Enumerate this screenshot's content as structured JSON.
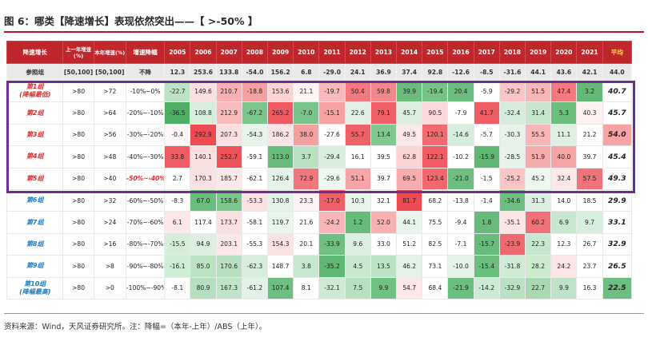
{
  "figure_title": "图 6：哪类【降速增长】表现依然突出——【 >-50% 】",
  "header": {
    "group": "降速增长",
    "prev_year": "上一年增速(%)",
    "this_year": "本年增速(%)",
    "decline": "增速降幅",
    "years": [
      "2005",
      "2006",
      "2007",
      "2008",
      "2009",
      "2010",
      "2011",
      "2012",
      "2013",
      "2014",
      "2015",
      "2016",
      "2017",
      "2018",
      "2019",
      "2020",
      "2021"
    ],
    "avg": "平均"
  },
  "reference": {
    "label": "参照组",
    "prev": "[50,100]",
    "this": "[50,100]",
    "decline": "不降",
    "values": [
      "12.3",
      "253.6",
      "133.8",
      "-54.0",
      "156.2",
      "6.8",
      "-29.0",
      "24.1",
      "36.9",
      "37.4",
      "92.8",
      "-12.6",
      "-8.5",
      "-31.6",
      "44.1",
      "43.6",
      "42.1"
    ],
    "avg": "44.0"
  },
  "groups": [
    {
      "label_line1": "第1组",
      "label_line2": "(降幅最低)",
      "prev": ">80",
      "this": ">72",
      "decline": "-10%~0%",
      "neg": false,
      "values": [
        "-22.7",
        "149.6",
        "210.7",
        "-18.8",
        "153.6",
        "21.1",
        "-19.7",
        "50.4",
        "59.8",
        "39.9",
        "-19.4",
        "20.4",
        "-5.9",
        "-29.2",
        "51.5",
        "47.4",
        "3.2"
      ],
      "colors": [
        "#bde3c5",
        "#fbe0e1",
        "#f7b0b2",
        "#f4a0a3",
        "#fcd2d3",
        "#fff4f4",
        "#f9b8ba",
        "#f2797e",
        "#f2888c",
        "#68bd7b",
        "#75c385",
        "#6cbd80",
        "#ffffff",
        "#fbc5c6",
        "#f9b6b8",
        "#f4797f",
        "#63ba77"
      ],
      "avg": "40.7"
    },
    {
      "label_line1": "第2组",
      "label_line2": "",
      "prev": ">80",
      "this": ">64",
      "decline": "-20%~-10%",
      "neg": false,
      "values": [
        "-36.5",
        "108.8",
        "212.9",
        "-67.2",
        "265.2",
        "-7.0",
        "-15.1",
        "22.6",
        "79.1",
        "45.7",
        "90.5",
        "-7.9",
        "41.7",
        "-32.4",
        "31.4",
        "5.3",
        "40.3"
      ],
      "colors": [
        "#4fae66",
        "#d7eedc",
        "#f9bcbd",
        "#7ac68c",
        "#ee5a60",
        "#79c48a",
        "#f6a1a4",
        "#e2f1e5",
        "#ef6167",
        "#dcefe0",
        "#fcdadb",
        "#ffffff",
        "#ef5c63",
        "#d7ecdc",
        "#c7e6cd",
        "#6abf7d",
        "#fff1f1"
      ],
      "avg": "45.7"
    },
    {
      "label_line1": "第3组",
      "label_line2": "",
      "prev": ">80",
      "this": ">56",
      "decline": "-30%~-20%",
      "neg": false,
      "values": [
        "-0.4",
        "292.9",
        "207.3",
        "-54.3",
        "186.2",
        "38.0",
        "-27.6",
        "55.7",
        "13.4",
        "49.5",
        "120.1",
        "-14.6",
        "-5.7",
        "-30.3",
        "55.5",
        "11.1",
        "21.2"
      ],
      "colors": [
        "#fff7f7",
        "#ed4a52",
        "#fcdfe0",
        "#e7f4ea",
        "#fbe4e5",
        "#f39fa2",
        "#ffffff",
        "#ef6168",
        "#7fc88f",
        "#fbe8e9",
        "#f06a70",
        "#d7eedc",
        "#ffffff",
        "#e7f3ea",
        "#f9b5b8",
        "#dff0e3",
        "#ffffff"
      ],
      "avg": "54.0"
    },
    {
      "label_line1": "第4组",
      "label_line2": "",
      "prev": ">80",
      "this": ">48",
      "decline": "-40%~-30%",
      "neg": false,
      "values": [
        "33.8",
        "140.1",
        "252.7",
        "-59.1",
        "113.0",
        "3.7",
        "-29.4",
        "16.1",
        "39.5",
        "62.8",
        "122.1",
        "-10.2",
        "-15.9",
        "-28.5",
        "51.9",
        "40.0",
        "39.7"
      ],
      "colors": [
        "#ef5c63",
        "#fcdfe0",
        "#ee5259",
        "#ffffff",
        "#67bc7b",
        "#b8e0c1",
        "#d9eedd",
        "#ffffff",
        "#ffffff",
        "#fbd3d5",
        "#ef5c63",
        "#ffffff",
        "#5fb774",
        "#e5f3e8",
        "#f8abad",
        "#f7a4a7",
        "#ffffff"
      ],
      "avg": "45.4"
    },
    {
      "label_line1": "第5组",
      "label_line2": "",
      "prev": ">80",
      "this": ">40",
      "decline": "-50%~-40%",
      "neg": true,
      "values": [
        "2.7",
        "170.3",
        "185.7",
        "-62.1",
        "126.4",
        "72.9",
        "-29.6",
        "51.1",
        "39.7",
        "69.5",
        "123.4",
        "-21.0",
        "-1.5",
        "-25.2",
        "45.2",
        "32.4",
        "57.5"
      ],
      "colors": [
        "#ffffff",
        "#fbe1e2",
        "#fde7e8",
        "#ffffff",
        "#e5f3e8",
        "#f2777c",
        "#eef8f0",
        "#f7a5a8",
        "#ffffff",
        "#f8acae",
        "#f06970",
        "#6dbf81",
        "#ffffff",
        "#fbc5c7",
        "#eef8f1",
        "#fde8e8",
        "#f1737a"
      ],
      "avg": "49.3"
    },
    {
      "label_line1": "第6组",
      "label_line2": "",
      "prev": ">80",
      "this": ">32",
      "decline": "-60%~-50%",
      "neg": false,
      "values": [
        "-8.3",
        "67.0",
        "158.6",
        "-53.3",
        "130.8",
        "23.3",
        "-17.0",
        "10.3",
        "32.1",
        "81.7",
        "68.2",
        "-13.8",
        "-1.4",
        "-34.6",
        "31.3",
        "14.0",
        "18.5"
      ],
      "colors": [
        "#ffffff",
        "#69bd7d",
        "#7ac68b",
        "#fbe1e2",
        "#e3f3e7",
        "#fff2f2",
        "#ef6168",
        "#e8f5eb",
        "#ffffff",
        "#ed4a52",
        "#ffffff",
        "#ffffff",
        "#ffffff",
        "#6dbf81",
        "#dcefe0",
        "#ffffff",
        "#ffffff"
      ],
      "avg": "29.9"
    },
    {
      "label_line1": "第7组",
      "label_line2": "",
      "prev": ">80",
      "this": ">24",
      "decline": "-70%~-60%",
      "neg": false,
      "values": [
        "6.1",
        "117.4",
        "173.7",
        "-58.1",
        "119.7",
        "21.6",
        "-24.2",
        "1.2",
        "52.0",
        "44.1",
        "75.5",
        "-9.4",
        "1.8",
        "-35.1",
        "60.2",
        "6.9",
        "9.7"
      ],
      "colors": [
        "#fde8e9",
        "#ffffff",
        "#fcdfe0",
        "#ffffff",
        "#e9f6ec",
        "#ffffff",
        "#f9b6b8",
        "#67bc7b",
        "#f8b1b3",
        "#e8f5eb",
        "#ffffff",
        "#ffffff",
        "#67bc7b",
        "#fde5e6",
        "#f07179",
        "#c8e7cf",
        "#d7eedc"
      ],
      "avg": "33.1"
    },
    {
      "label_line1": "第8组",
      "label_line2": "",
      "prev": ">80",
      "this": ">16",
      "decline": "-80%~-70%",
      "neg": false,
      "values": [
        "-15.5",
        "94.9",
        "203.1",
        "-55.3",
        "154.3",
        "20.1",
        "-33.9",
        "9.6",
        "33.0",
        "51.2",
        "82.5",
        "-7.1",
        "-15.7",
        "-23.9",
        "22.3",
        "12.3",
        "26.7"
      ],
      "colors": [
        "#d6edda",
        "#dcefe0",
        "#fde9ea",
        "#ffffff",
        "#fbe2e3",
        "#ffffff",
        "#6ebf81",
        "#dcefe0",
        "#ffffff",
        "#ffffff",
        "#ffffff",
        "#ffffff",
        "#67bc7b",
        "#f06970",
        "#c8e7cf",
        "#ffffff",
        "#ffffff"
      ],
      "avg": "32.9"
    },
    {
      "label_line1": "第9组",
      "label_line2": "",
      "prev": ">80",
      "this": ">8",
      "decline": "-90%~-80%",
      "neg": false,
      "values": [
        "-16.1",
        "85.0",
        "170.6",
        "-62.3",
        "148.7",
        "3.8",
        "-35.2",
        "4.5",
        "13.5",
        "46.2",
        "73.1",
        "-10.0",
        "-15.4",
        "-31.8",
        "28.2",
        "24.2",
        "23.7"
      ],
      "colors": [
        "#cfeed5",
        "#bce2c4",
        "#b8e0c0",
        "#d7eedc",
        "#ffffff",
        "#c8e7cf",
        "#5fb774",
        "#c9e8d0",
        "#bde3c5",
        "#e4f3e8",
        "#ffffff",
        "#e5f3e8",
        "#6abf7e",
        "#cfebd6",
        "#cdeace",
        "#fde6e7",
        "#ffffff"
      ],
      "avg": "26.5"
    },
    {
      "label_line1": "第10组",
      "label_line2": "(降幅最高)",
      "prev": ">80",
      "this": ">0",
      "decline": "-100%~-90%",
      "neg": false,
      "values": [
        "-8.1",
        "80.9",
        "167.3",
        "-61.2",
        "107.4",
        "8.1",
        "-32.1",
        "7.5",
        "9.9",
        "54.7",
        "68.4",
        "-21.9",
        "-14.2",
        "-32.9",
        "22.7",
        "9.9",
        "16.3"
      ],
      "colors": [
        "#ffffff",
        "#b5dfbf",
        "#c1e4c9",
        "#e3f2e6",
        "#6dbf81",
        "#ffffff",
        "#cfe9d5",
        "#b7e0c0",
        "#72c184",
        "#fde8e9",
        "#ffffff",
        "#6abf7e",
        "#cdead4",
        "#b9e1c2",
        "#a9d9b3",
        "#bfe3c8",
        "#ffffff"
      ],
      "avg": "22.5"
    }
  ],
  "group_colors": {
    "label": "#1e7fc1",
    "avg_top": "#000000"
  },
  "avg_colors": [
    "#ffffff",
    "#ffffff",
    "#f7a3a6",
    "#ffffff",
    "#ffffff",
    "#ffffff",
    "#ffffff",
    "#ffffff",
    "#ffffff",
    "#6dbf81"
  ],
  "source_note": "资料来源：Wind，天风证券研究所。注：降幅=（本年-上年）/ABS（上年）。"
}
